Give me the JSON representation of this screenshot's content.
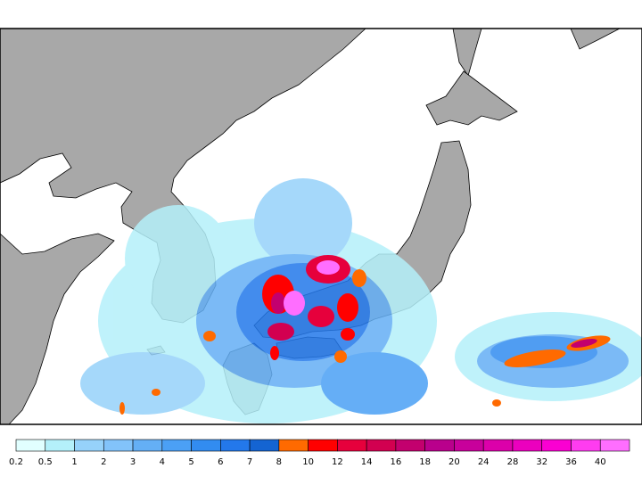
{
  "colorbar": {
    "ticks": [
      0.2,
      0.5,
      1,
      2,
      3,
      4,
      5,
      6,
      7,
      8,
      10,
      12,
      14,
      16,
      18,
      20,
      24,
      28,
      32,
      36,
      40
    ],
    "colors": [
      "#e1ffff",
      "#b4f0fa",
      "#96d2fa",
      "#82c3fa",
      "#64aff5",
      "#4ba0f5",
      "#328cf0",
      "#2378eb",
      "#1464d2",
      "#ff6a00",
      "#ff0000",
      "#e6003c",
      "#d20050",
      "#c3006e",
      "#b9008c",
      "#c8009b",
      "#dc00aa",
      "#eb00be",
      "#fa00d2",
      "#ff3cf0",
      "#ff6eff"
    ]
  }
}
